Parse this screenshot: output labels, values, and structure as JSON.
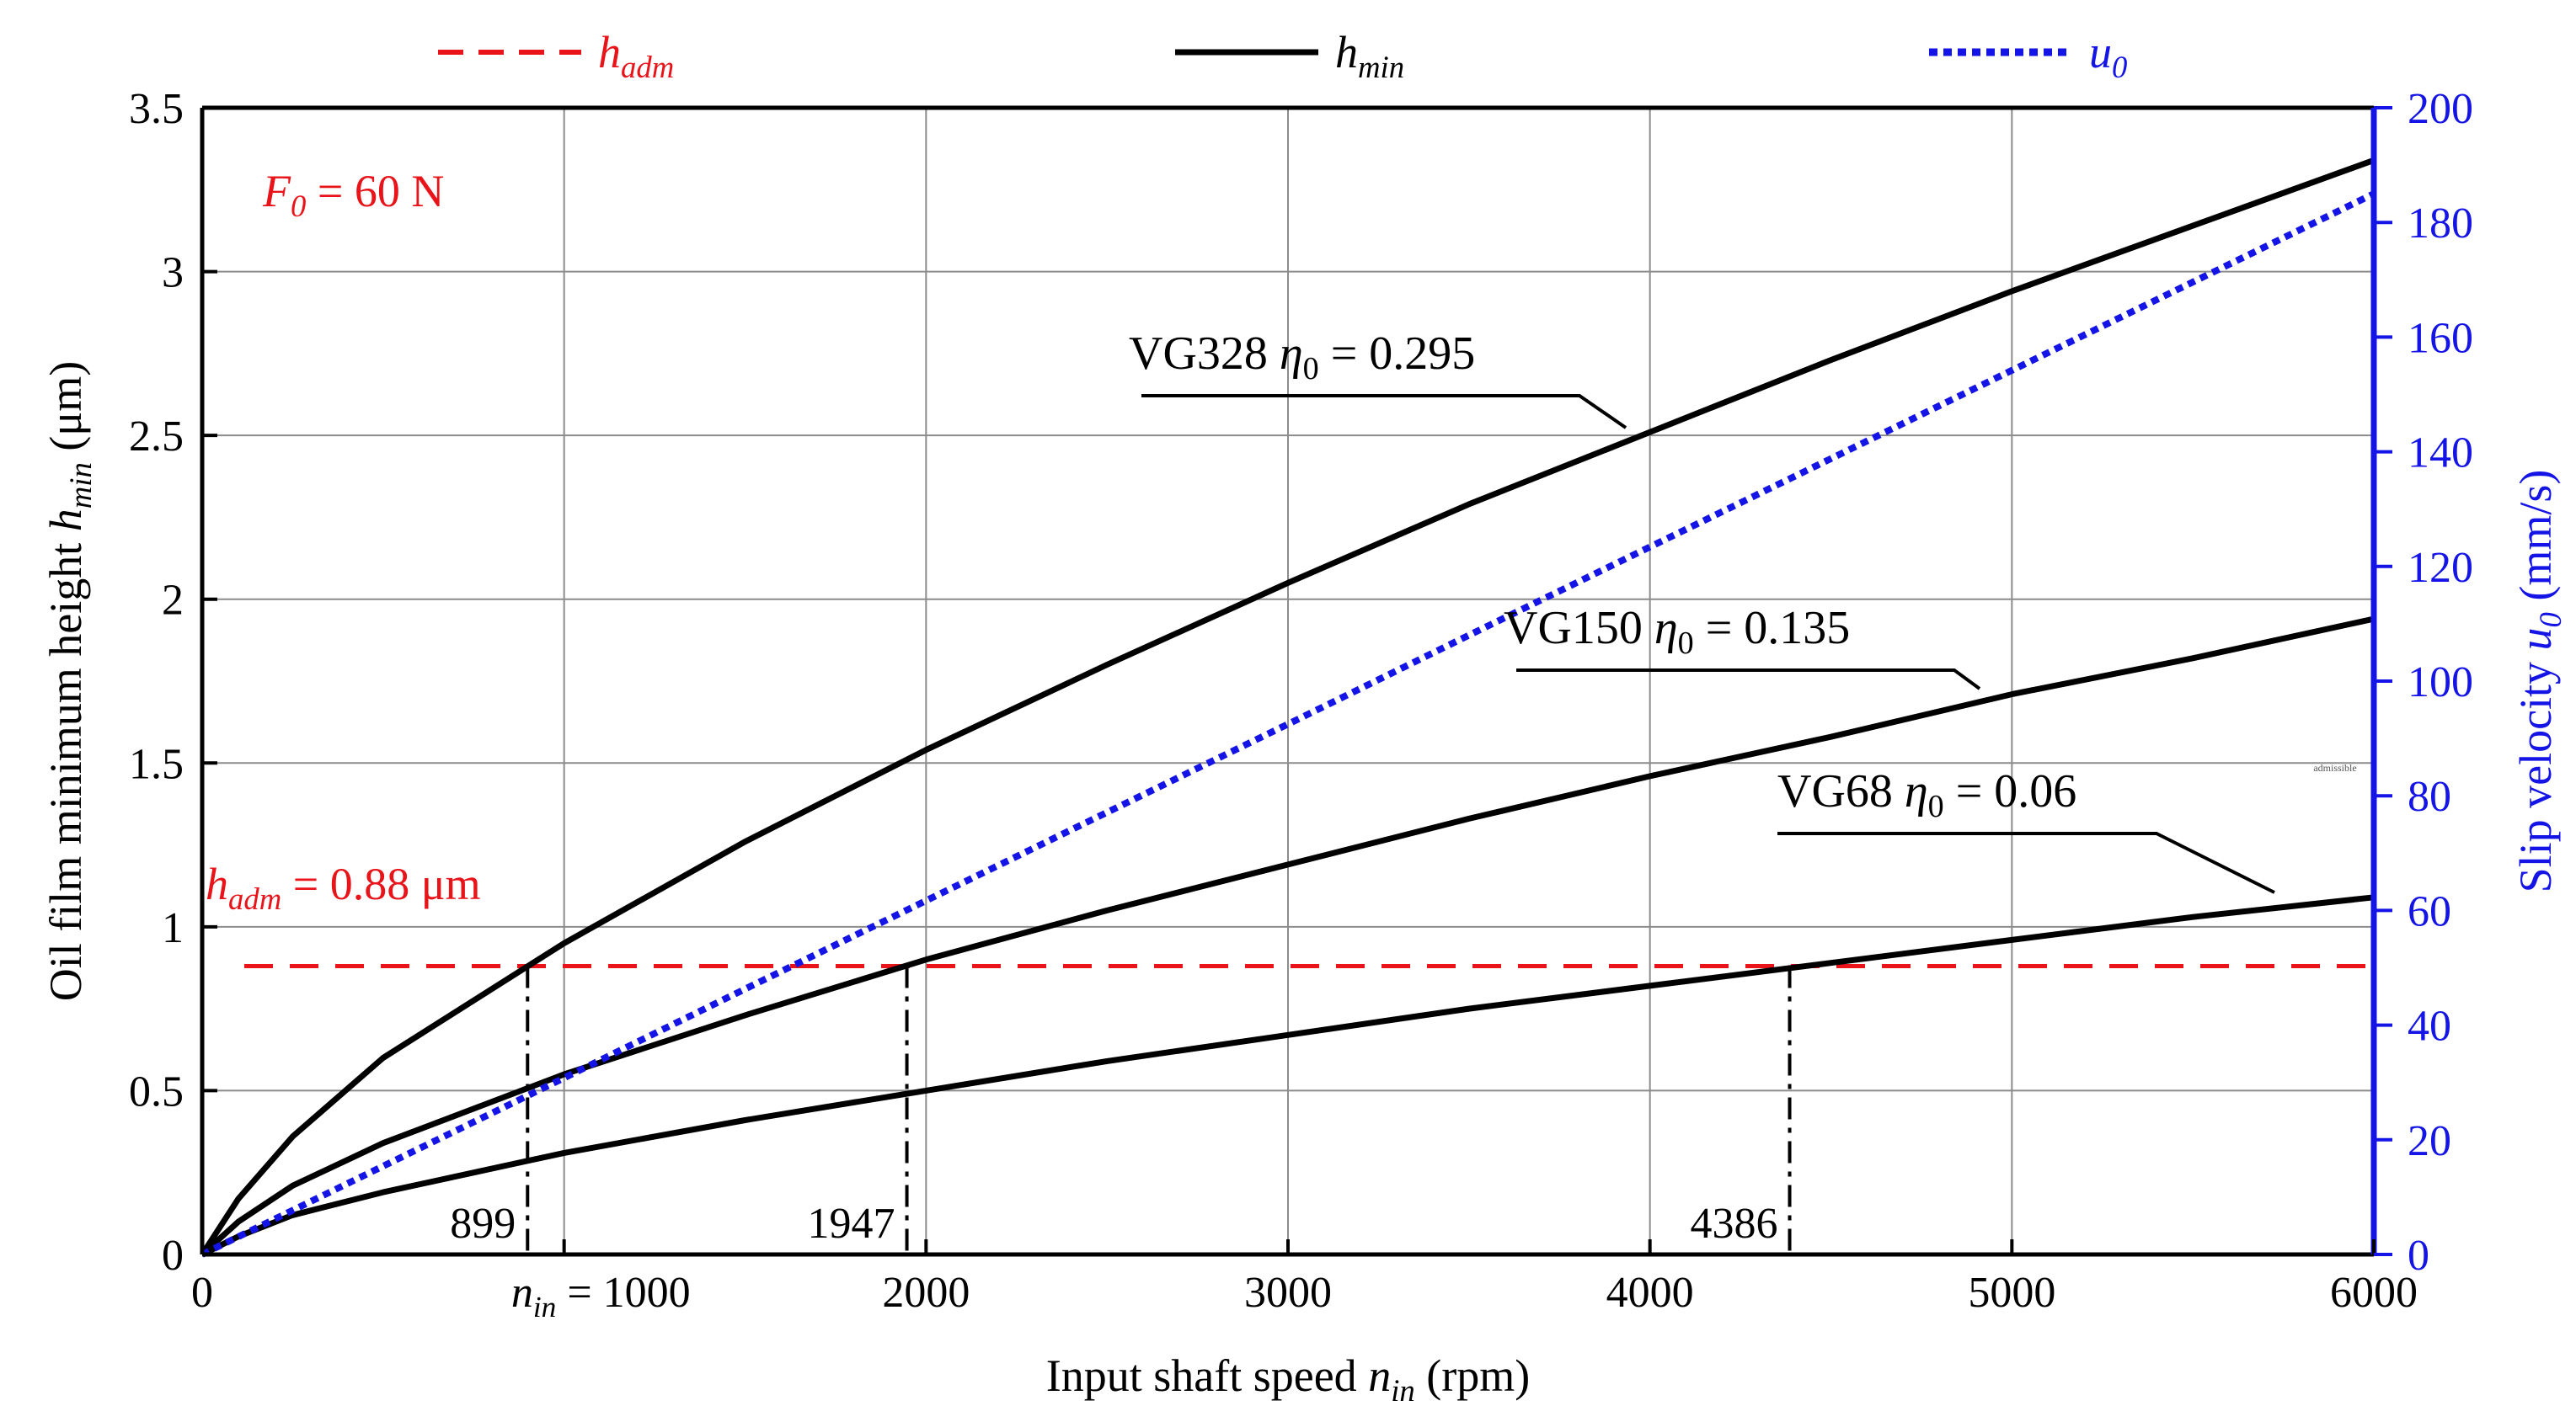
{
  "chart_data": {
    "type": "line",
    "title": "",
    "annotation_load": {
      "symbol": "F",
      "sub": "0",
      "text": " = 60 N"
    },
    "xlabel": {
      "text": "Input shaft speed ",
      "symbol": "n",
      "sub": "in",
      "unit": " (rpm)"
    },
    "ylabel_left": {
      "text": "Oil film minimum height ",
      "symbol": "h",
      "sub": "min",
      "unit": " (μm)"
    },
    "ylabel_right": {
      "text": "Slip velocity ",
      "symbol": "u",
      "sub": "0",
      "unit": " (mm/s)"
    },
    "xlim": [
      0,
      6000
    ],
    "ylim_left": [
      0,
      3.5
    ],
    "ylim_right": [
      0,
      200
    ],
    "x_ticks": [
      "0",
      "1000",
      "2000",
      "3000",
      "4000",
      "5000",
      "6000"
    ],
    "x_tick_prefix": {
      "symbol": "n",
      "sub": "in",
      "text": " = "
    },
    "y_ticks_left": [
      "0",
      "0.5",
      "1",
      "1.5",
      "2",
      "2.5",
      "3",
      "3.5"
    ],
    "y_ticks_right": [
      "0",
      "20",
      "40",
      "60",
      "80",
      "100",
      "120",
      "140",
      "160",
      "180",
      "200"
    ],
    "legend": [
      {
        "name": "h",
        "sub": "adm",
        "style": "dashed",
        "color": "#e8141a"
      },
      {
        "name": "h",
        "sub": "min",
        "style": "solid",
        "color": "#000000"
      },
      {
        "name": "u",
        "sub": "0",
        "style": "dotted",
        "color": "#1414e6"
      }
    ],
    "x": [
      0,
      100,
      250,
      500,
      1000,
      1500,
      2000,
      2500,
      3000,
      3500,
      4000,
      4500,
      5000,
      5500,
      6000
    ],
    "series": [
      {
        "name": "VG328",
        "eta_label": " = 0.295",
        "axis": "left",
        "style": "solid",
        "color": "#000000",
        "values": [
          0,
          0.17,
          0.36,
          0.6,
          0.95,
          1.26,
          1.54,
          1.8,
          2.05,
          2.29,
          2.51,
          2.73,
          2.94,
          3.14,
          3.34
        ]
      },
      {
        "name": "VG150",
        "eta_label": " = 0.135",
        "axis": "left",
        "style": "solid",
        "color": "#000000",
        "values": [
          0,
          0.1,
          0.21,
          0.34,
          0.55,
          0.73,
          0.9,
          1.05,
          1.19,
          1.33,
          1.46,
          1.58,
          1.71,
          1.82,
          1.94
        ]
      },
      {
        "name": "VG68",
        "eta_label": " = 0.06",
        "axis": "left",
        "style": "solid",
        "color": "#000000",
        "values": [
          0,
          0.055,
          0.12,
          0.19,
          0.31,
          0.41,
          0.5,
          0.59,
          0.67,
          0.75,
          0.82,
          0.89,
          0.96,
          1.03,
          1.09
        ]
      },
      {
        "name": "u0",
        "axis": "right",
        "style": "dotted",
        "color": "#1414e6",
        "values": [
          0,
          3.1,
          7.7,
          15.4,
          30.8,
          46.3,
          61.7,
          77.1,
          92.5,
          108.0,
          123.4,
          138.8,
          154.2,
          169.6,
          185.0
        ]
      }
    ],
    "h_adm": {
      "value": 0.88,
      "symbol": "h",
      "sub": "adm",
      "text": " = 0.88 μm",
      "color": "#e8141a"
    },
    "intersections": [
      {
        "x": 899,
        "label": "899"
      },
      {
        "x": 1947,
        "label": "1947"
      },
      {
        "x": 4386,
        "label": "4386"
      }
    ],
    "eta_symbol": "η",
    "eta_sub": "0",
    "stray_text": "admissible"
  }
}
